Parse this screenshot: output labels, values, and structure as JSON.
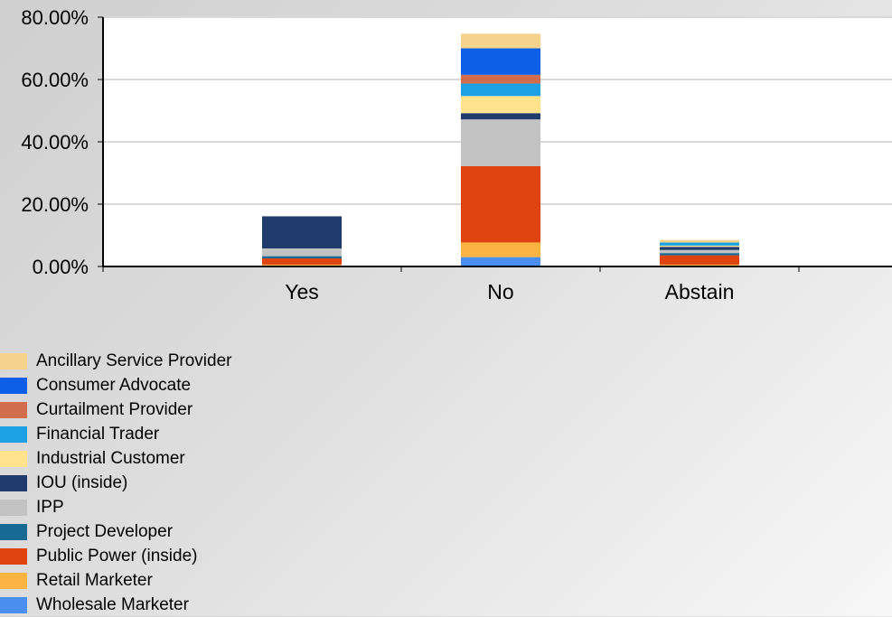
{
  "chart_data": {
    "type": "bar",
    "stacked": true,
    "categories": [
      "Yes",
      "No",
      "Abstain"
    ],
    "y_ticks": [
      "0.00%",
      "20.00%",
      "40.00%",
      "60.00%",
      "80.00%"
    ],
    "ylim": [
      0,
      80
    ],
    "y_unit": "%",
    "grid": true,
    "legend_position": "bottom-left",
    "series": [
      {
        "name": "Wholesale Marketer",
        "color": "#4a8ff0",
        "values": [
          0.3,
          3.0,
          0.3
        ]
      },
      {
        "name": "Retail Marketer",
        "color": "#fbb441",
        "values": [
          0.3,
          4.7,
          0.3
        ]
      },
      {
        "name": "Public Power (inside)",
        "color": "#e0440e",
        "values": [
          2.0,
          24.5,
          3.0
        ]
      },
      {
        "name": "Project Developer",
        "color": "#166a94",
        "values": [
          0.7,
          0.0,
          0.7
        ]
      },
      {
        "name": "IPP",
        "color": "#c2c2c2",
        "values": [
          2.5,
          15.0,
          1.0
        ]
      },
      {
        "name": "IOU (inside)",
        "color": "#1f3a6b",
        "values": [
          10.3,
          2.0,
          1.0
        ]
      },
      {
        "name": "Industrial Customer",
        "color": "#fee38c",
        "values": [
          0.0,
          5.5,
          0.4
        ]
      },
      {
        "name": "Financial Trader",
        "color": "#1ea0e4",
        "values": [
          0.0,
          4.0,
          1.0
        ]
      },
      {
        "name": "Curtailment Provider",
        "color": "#d16d4d",
        "values": [
          0.0,
          2.8,
          0.0
        ]
      },
      {
        "name": "Consumer Advocate",
        "color": "#0c5fe6",
        "values": [
          0.0,
          8.5,
          0.0
        ]
      },
      {
        "name": "Ancillary Service Provider",
        "color": "#f5d38c",
        "values": [
          0.0,
          4.7,
          0.8
        ]
      }
    ]
  },
  "legend": {
    "items": [
      {
        "label": "Ancillary Service Provider",
        "color": "#f5d38c"
      },
      {
        "label": "Consumer Advocate",
        "color": "#0c5fe6"
      },
      {
        "label": "Curtailment Provider",
        "color": "#d16d4d"
      },
      {
        "label": "Financial Trader",
        "color": "#1ea0e4"
      },
      {
        "label": "Industrial Customer",
        "color": "#fee38c"
      },
      {
        "label": "IOU (inside)",
        "color": "#1f3a6b"
      },
      {
        "label": "IPP",
        "color": "#c2c2c2"
      },
      {
        "label": "Project Developer",
        "color": "#166a94"
      },
      {
        "label": "Public Power (inside)",
        "color": "#e0440e"
      },
      {
        "label": "Retail Marketer",
        "color": "#fbb441"
      },
      {
        "label": "Wholesale Marketer",
        "color": "#4a8ff0"
      }
    ]
  }
}
